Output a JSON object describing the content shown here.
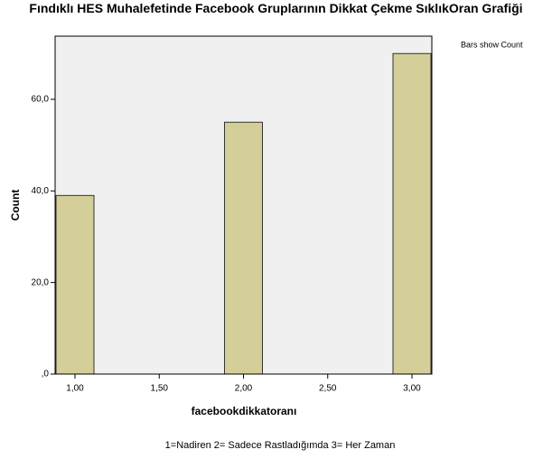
{
  "chart_data": {
    "type": "bar",
    "title": "Fındıklı HES Muhalefetinde Facebook Gruplarının Dikkat Çekme SıklıkOran Grafiği",
    "note": "Bars show Count",
    "x_label": "facebookdikkatoranı",
    "y_label": "Count",
    "footnote": "1=Nadiren 2= Sadece Rastladığımda 3= Her Zaman",
    "x": [
      1,
      2,
      3
    ],
    "values": [
      39,
      55,
      70
    ],
    "color": "#d4cf98",
    "xlim": [
      0.882,
      3.118
    ],
    "xticks": [
      {
        "value": 1,
        "label": "1,00"
      },
      {
        "value": 1.5,
        "label": "1,50"
      },
      {
        "value": 2,
        "label": "2,00"
      },
      {
        "value": 2.5,
        "label": "2,50"
      },
      {
        "value": 3,
        "label": "3,00"
      }
    ],
    "ylim": [
      0,
      73.8
    ],
    "yticks": [
      {
        "value": 0,
        "label": ",0"
      },
      {
        "value": 20,
        "label": "20,0"
      },
      {
        "value": 40,
        "label": "40,0"
      },
      {
        "value": 60,
        "label": "60,0"
      }
    ]
  }
}
